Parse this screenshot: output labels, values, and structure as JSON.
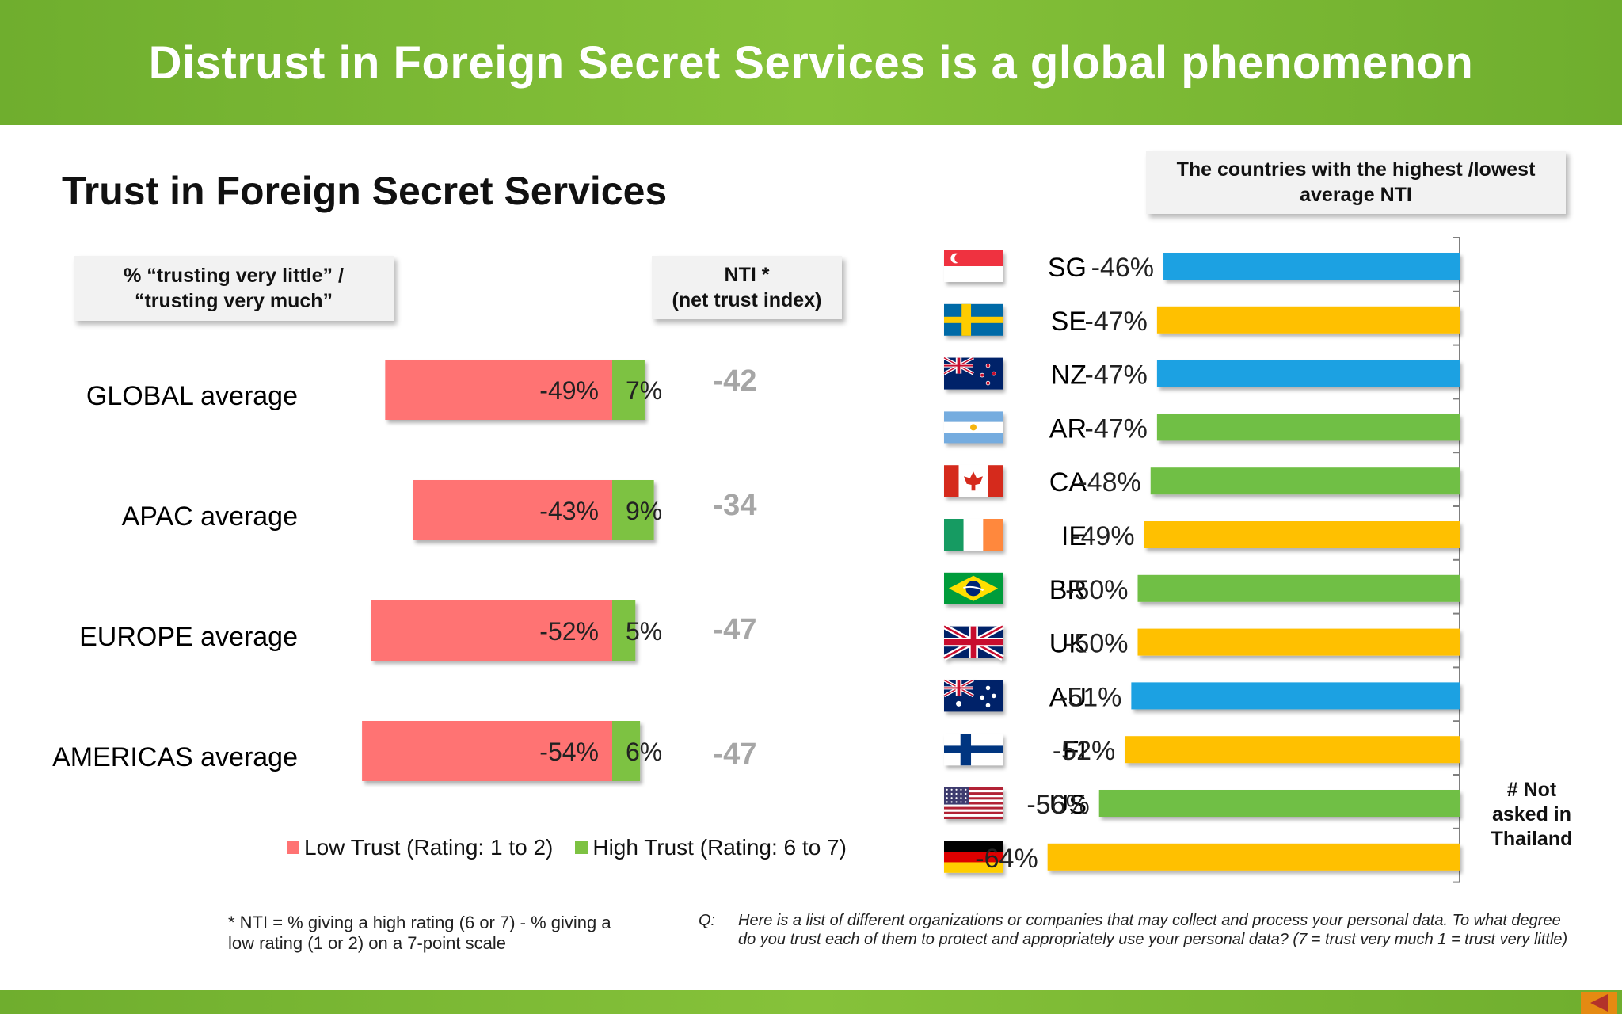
{
  "title": "Distrust in Foreign Secret Services is a global phenomenon",
  "section_title": "Trust in Foreign Secret Services",
  "boxes": {
    "percent_line1": "% “trusting very  little” /",
    "percent_line2": "“trusting very much”",
    "nti_line1": "NTI *",
    "nti_line2": "(net trust index)",
    "ranking_line1": "The countries with the highest /lowest",
    "ranking_line2": "average NTI"
  },
  "legend": {
    "low": "Low Trust (Rating: 1 to 2)",
    "high": "High Trust (Rating: 6 to 7)"
  },
  "not_asked": [
    "# Not",
    "asked in",
    "Thailand"
  ],
  "footnote_line1": "* NTI = % giving a high rating (6 or 7) - % giving a",
  "footnote_line2": "low rating (1 or 2) on a 7-point scale",
  "question_label": "Q:",
  "question_text": "Here is a list of different organizations or companies that may collect and process your personal data.  To what degree do you trust each of them to protect and appropriately use your personal data? (7 = trust very much 1 = trust very little)",
  "colors": {
    "low": "#ff7373",
    "high": "#7dc242",
    "nti": "#a6a6a6",
    "apac": "#1ba1e2",
    "europe": "#ffc000",
    "americas": "#70bf44"
  },
  "chart_data": [
    {
      "type": "bar",
      "orientation": "horizontal",
      "stacked": true,
      "categories": [
        "GLOBAL average",
        "APAC average",
        "EUROPE average",
        "AMERICAS average"
      ],
      "series": [
        {
          "name": "Low Trust (Rating: 1 to 2)",
          "values": [
            -49,
            -43,
            -52,
            -54
          ],
          "labels": [
            "-49%",
            "-43%",
            "-52%",
            "-54%"
          ]
        },
        {
          "name": "High Trust (Rating: 6 to 7)",
          "values": [
            7,
            9,
            5,
            6
          ],
          "labels": [
            "7%",
            "9%",
            "5%",
            "6%"
          ]
        }
      ],
      "nti": [
        -42,
        -34,
        -47,
        -47
      ],
      "nti_labels": [
        "-42",
        "-34",
        "-47",
        "-47"
      ],
      "legend": "bottom"
    },
    {
      "type": "bar",
      "orientation": "horizontal",
      "categories": [
        "SG",
        "SE",
        "NZ",
        "AR",
        "CA",
        "IE",
        "BR",
        "UK",
        "AU",
        "FI",
        "US",
        "DE"
      ],
      "values": [
        -46,
        -47,
        -47,
        -47,
        -48,
        -49,
        -50,
        -50,
        -51,
        -52,
        -56,
        -64
      ],
      "labels": [
        "-46%",
        "-47%",
        "-47%",
        "-47%",
        "-48%",
        "-49%",
        "-50%",
        "-50%",
        "-51%",
        "-52%",
        "-56%",
        "-64%"
      ],
      "region": [
        "apac",
        "europe",
        "apac",
        "americas",
        "americas",
        "europe",
        "americas",
        "europe",
        "apac",
        "europe",
        "americas",
        "europe"
      ],
      "flags": [
        "singapore-flag",
        "sweden-flag",
        "new-zealand-flag",
        "argentina-flag",
        "canada-flag",
        "ireland-flag",
        "brazil-flag",
        "uk-flag",
        "australia-flag",
        "finland-flag",
        "usa-flag",
        "germany-flag"
      ]
    }
  ]
}
